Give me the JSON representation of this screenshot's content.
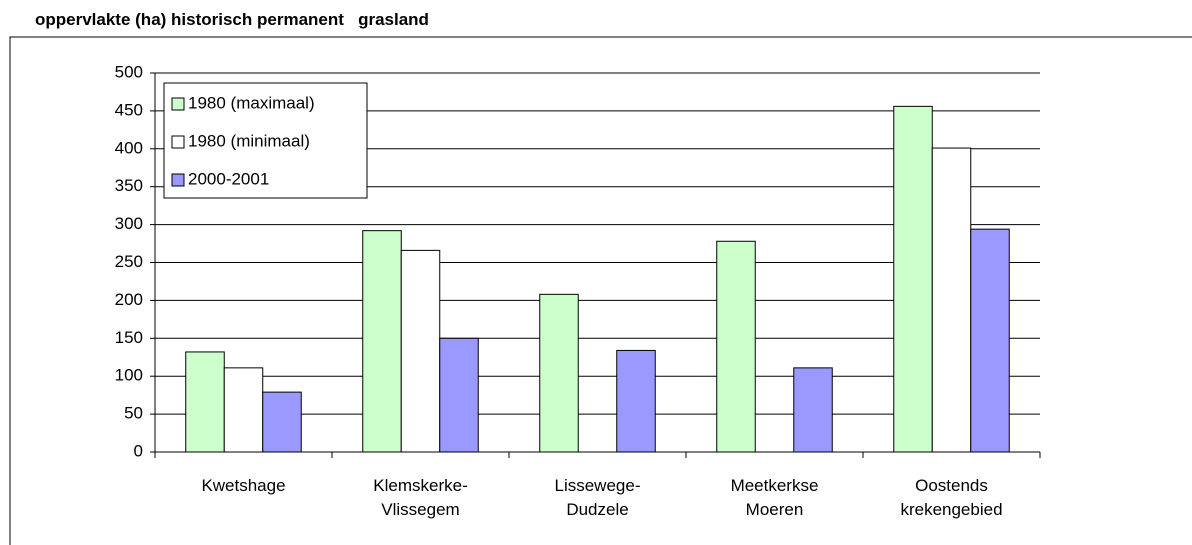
{
  "chart_data": {
    "type": "bar",
    "title": "oppervlakte (ha) historisch permanent   grasland",
    "categories": [
      "Kwetshage",
      "Klemskerke-\nVlissegem",
      "Lissewege-\nDudzele",
      "Meetkerkse\nMoeren",
      "Oostends\nkrekengebied"
    ],
    "series": [
      {
        "name": "1980 (maximaal)",
        "color": "#ccffcc",
        "values": [
          132,
          292,
          208,
          278,
          456
        ]
      },
      {
        "name": "1980 (minimaal)",
        "color": "#ffffff",
        "values": [
          111,
          266,
          null,
          null,
          401
        ]
      },
      {
        "name": "2000-2001",
        "color": "#9999ff",
        "values": [
          79,
          150,
          134,
          111,
          294
        ]
      }
    ],
    "ylim": [
      0,
      500
    ],
    "yticks": [
      0,
      50,
      100,
      150,
      200,
      250,
      300,
      350,
      400,
      450,
      500
    ],
    "grid": true,
    "legend": "top-left"
  }
}
